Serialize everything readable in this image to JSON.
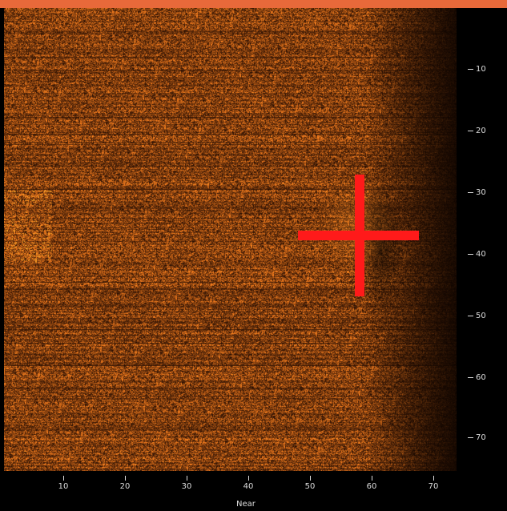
{
  "colors": {
    "top_bar": "#e8693a",
    "crosshair": "#ff1a1a",
    "sonar_bright": "#f0a040",
    "sonar_mid": "#8a4a14",
    "sonar_dark": "#1e0c02",
    "axis_text": "#dddddd"
  },
  "marker": {
    "shape": "crosshair",
    "x": 58,
    "y": 37
  },
  "axes": {
    "y_ticks": [
      "10",
      "20",
      "30",
      "40",
      "50",
      "60",
      "70"
    ],
    "x_ticks": [
      "10",
      "20",
      "30",
      "40",
      "50",
      "60",
      "70"
    ],
    "x_label": "Near"
  }
}
